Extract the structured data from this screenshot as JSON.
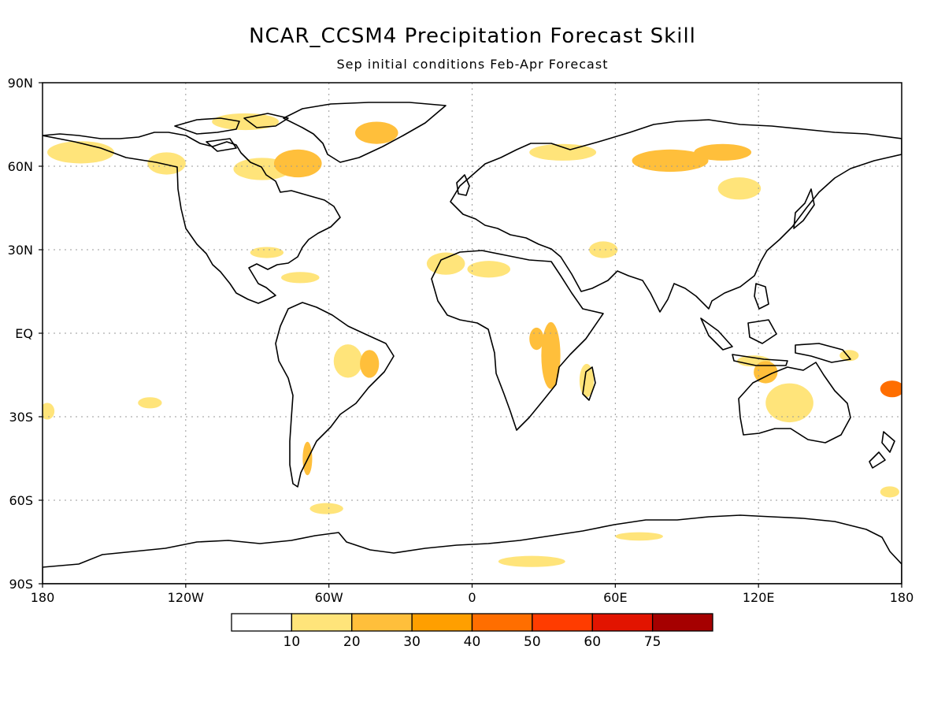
{
  "title": "NCAR_CCSM4 Precipitation Forecast Skill",
  "subtitle": "Sep initial conditions  Feb-Apr Forecast",
  "map": {
    "projection": "equirectangular",
    "lon_range": [
      -180,
      180
    ],
    "lat_range": [
      -90,
      90
    ],
    "lon_ticks": [
      {
        "value": -180,
        "label": "180"
      },
      {
        "value": -120,
        "label": "120W"
      },
      {
        "value": -60,
        "label": "60W"
      },
      {
        "value": 0,
        "label": "0"
      },
      {
        "value": 60,
        "label": "60E"
      },
      {
        "value": 120,
        "label": "120E"
      },
      {
        "value": 180,
        "label": "180"
      }
    ],
    "lat_ticks": [
      {
        "value": 90,
        "label": "90N"
      },
      {
        "value": 60,
        "label": "60N"
      },
      {
        "value": 30,
        "label": "30N"
      },
      {
        "value": 0,
        "label": "EQ"
      },
      {
        "value": -30,
        "label": "30S"
      },
      {
        "value": -60,
        "label": "60S"
      },
      {
        "value": -90,
        "label": "90S"
      }
    ],
    "gridlines": true,
    "skill_regions": [
      {
        "lon": -164,
        "lat": 65,
        "rx": 14,
        "ry": 4,
        "level": 1
      },
      {
        "lon": -128,
        "lat": 61,
        "rx": 8,
        "ry": 4,
        "level": 1
      },
      {
        "lon": -88,
        "lat": 59,
        "rx": 12,
        "ry": 4,
        "level": 1
      },
      {
        "lon": -73,
        "lat": 61,
        "rx": 10,
        "ry": 5,
        "level": 2
      },
      {
        "lon": -40,
        "lat": 72,
        "rx": 9,
        "ry": 4,
        "level": 2
      },
      {
        "lon": -95,
        "lat": 76,
        "rx": 14,
        "ry": 3,
        "level": 1
      },
      {
        "lon": -86,
        "lat": 29,
        "rx": 7,
        "ry": 2,
        "level": 1
      },
      {
        "lon": -72,
        "lat": 20,
        "rx": 8,
        "ry": 2,
        "level": 1
      },
      {
        "lon": -52,
        "lat": -10,
        "rx": 6,
        "ry": 6,
        "level": 1
      },
      {
        "lon": -43,
        "lat": -11,
        "rx": 4,
        "ry": 5,
        "level": 2
      },
      {
        "lon": -69,
        "lat": -45,
        "rx": 2,
        "ry": 6,
        "level": 2
      },
      {
        "lon": -61,
        "lat": -63,
        "rx": 7,
        "ry": 2,
        "level": 1
      },
      {
        "lon": -11,
        "lat": 25,
        "rx": 8,
        "ry": 4,
        "level": 1
      },
      {
        "lon": 7,
        "lat": 23,
        "rx": 9,
        "ry": 3,
        "level": 1
      },
      {
        "lon": 33,
        "lat": -8,
        "rx": 4,
        "ry": 12,
        "level": 2
      },
      {
        "lon": 27,
        "lat": -2,
        "rx": 3,
        "ry": 4,
        "level": 2
      },
      {
        "lon": 48,
        "lat": -17,
        "rx": 3,
        "ry": 6,
        "level": 1
      },
      {
        "lon": 38,
        "lat": 65,
        "rx": 14,
        "ry": 3,
        "level": 1
      },
      {
        "lon": 83,
        "lat": 62,
        "rx": 16,
        "ry": 4,
        "level": 2
      },
      {
        "lon": 105,
        "lat": 65,
        "rx": 12,
        "ry": 3,
        "level": 2
      },
      {
        "lon": 112,
        "lat": 52,
        "rx": 9,
        "ry": 4,
        "level": 1
      },
      {
        "lon": 55,
        "lat": 30,
        "rx": 6,
        "ry": 3,
        "level": 1
      },
      {
        "lon": 118,
        "lat": -10,
        "rx": 7,
        "ry": 2,
        "level": 1
      },
      {
        "lon": 123,
        "lat": -14,
        "rx": 5,
        "ry": 4,
        "level": 2
      },
      {
        "lon": 133,
        "lat": -25,
        "rx": 10,
        "ry": 7,
        "level": 1
      },
      {
        "lon": 176,
        "lat": -20,
        "rx": 5,
        "ry": 3,
        "level": 3
      },
      {
        "lon": 158,
        "lat": -8,
        "rx": 4,
        "ry": 2,
        "level": 1
      },
      {
        "lon": 25,
        "lat": -82,
        "rx": 14,
        "ry": 2,
        "level": 1
      },
      {
        "lon": 70,
        "lat": -73,
        "rx": 10,
        "ry": 1.5,
        "level": 1
      },
      {
        "lon": -135,
        "lat": -25,
        "rx": 5,
        "ry": 2,
        "level": 1
      },
      {
        "lon": -178,
        "lat": -28,
        "rx": 3,
        "ry": 3,
        "level": 1
      },
      {
        "lon": 175,
        "lat": -57,
        "rx": 4,
        "ry": 2,
        "level": 1
      }
    ]
  },
  "colorbar": {
    "colors": [
      "#ffffff",
      "#ffe47a",
      "#ffbf3b",
      "#ff9f00",
      "#ff6e00",
      "#ff3c00",
      "#e21400",
      "#a50000"
    ],
    "labels": [
      "10",
      "20",
      "30",
      "40",
      "50",
      "60",
      "75"
    ]
  },
  "colors": {
    "level1": "#ffe47a",
    "level2": "#ffbf3b",
    "level3": "#ff6e00",
    "coastline": "#000000"
  }
}
